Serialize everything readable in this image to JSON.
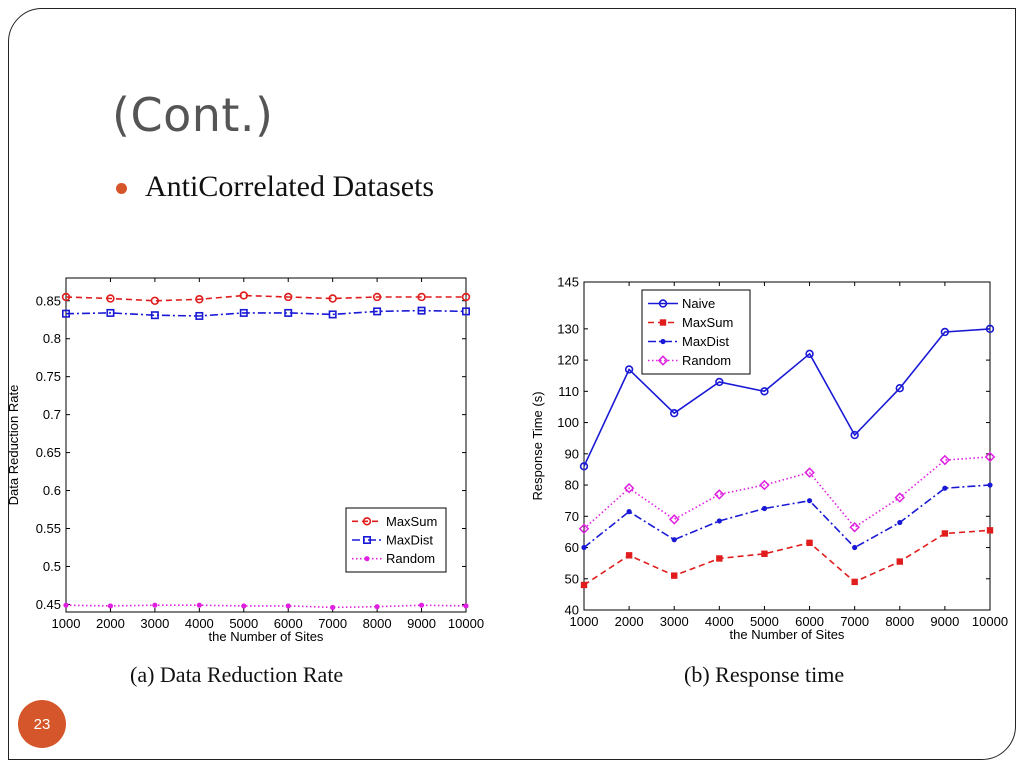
{
  "slide": {
    "title": "(Cont.)",
    "bullet": "AntiCorrelated Datasets",
    "page_number": "23",
    "accent_color": "#d4562a"
  },
  "chart_data": [
    {
      "type": "line",
      "caption": "(a) Data Reduction Rate",
      "xlabel": "the Number of Sites",
      "ylabel": "Data Reduction Rate",
      "x": [
        1000,
        2000,
        3000,
        4000,
        5000,
        6000,
        7000,
        8000,
        9000,
        10000
      ],
      "xticks": [
        "1000",
        "2000",
        "3000",
        "4000",
        "5000",
        "6000",
        "7000",
        "8000",
        "9000",
        "10000"
      ],
      "ylim": [
        0.44,
        0.88
      ],
      "yticks": [
        "0.45",
        "0.5",
        "0.55",
        "0.6",
        "0.65",
        "0.7",
        "0.75",
        "0.8",
        "0.85"
      ],
      "legend_position": "bottom-right",
      "series": [
        {
          "name": "MaxSum",
          "color": "#e01c1c",
          "dash": "6,4",
          "marker": "circle-open",
          "values": [
            0.855,
            0.853,
            0.85,
            0.852,
            0.857,
            0.855,
            0.853,
            0.855,
            0.855,
            0.855
          ]
        },
        {
          "name": "MaxDist",
          "color": "#1a1ad6",
          "dash": "8,3,2,3",
          "marker": "square-open",
          "values": [
            0.833,
            0.834,
            0.831,
            0.83,
            0.834,
            0.834,
            0.832,
            0.836,
            0.837,
            0.836
          ]
        },
        {
          "name": "Random",
          "color": "#e020e0",
          "dash": "1.5,2.5",
          "marker": "dot",
          "values": [
            0.449,
            0.448,
            0.449,
            0.449,
            0.448,
            0.448,
            0.446,
            0.447,
            0.449,
            0.448
          ]
        }
      ]
    },
    {
      "type": "line",
      "caption": "(b) Response time",
      "xlabel": "the Number of Sites",
      "ylabel": "Response Time (s)",
      "x": [
        1000,
        2000,
        3000,
        4000,
        5000,
        6000,
        7000,
        8000,
        9000,
        10000
      ],
      "xticks": [
        "1000",
        "2000",
        "3000",
        "4000",
        "5000",
        "6000",
        "7000",
        "8000",
        "9000",
        "10000"
      ],
      "ylim": [
        40,
        145
      ],
      "yticks": [
        "40",
        "50",
        "60",
        "70",
        "80",
        "90",
        "100",
        "110",
        "120",
        "130",
        "145"
      ],
      "legend_position": "top-left",
      "series": [
        {
          "name": "Naive",
          "color": "#1a1ad6",
          "dash": "",
          "marker": "circle-open",
          "values": [
            86,
            117,
            103,
            113,
            110,
            122,
            96,
            111,
            129,
            130
          ]
        },
        {
          "name": "MaxSum",
          "color": "#e01c1c",
          "dash": "6,4",
          "marker": "square-filled",
          "values": [
            48,
            57.5,
            51,
            56.5,
            58,
            61.5,
            49,
            55.5,
            64.5,
            65.5
          ]
        },
        {
          "name": "MaxDist",
          "color": "#1a1ad6",
          "dash": "8,3,2,3",
          "marker": "dot",
          "values": [
            60,
            71.5,
            62.5,
            68.5,
            72.5,
            75,
            60,
            68,
            79,
            80
          ]
        },
        {
          "name": "Random",
          "color": "#e020e0",
          "dash": "1.5,2.5",
          "marker": "diamond-open",
          "values": [
            66,
            79,
            69,
            77,
            80,
            84,
            66.5,
            76,
            88,
            89
          ]
        }
      ]
    }
  ]
}
